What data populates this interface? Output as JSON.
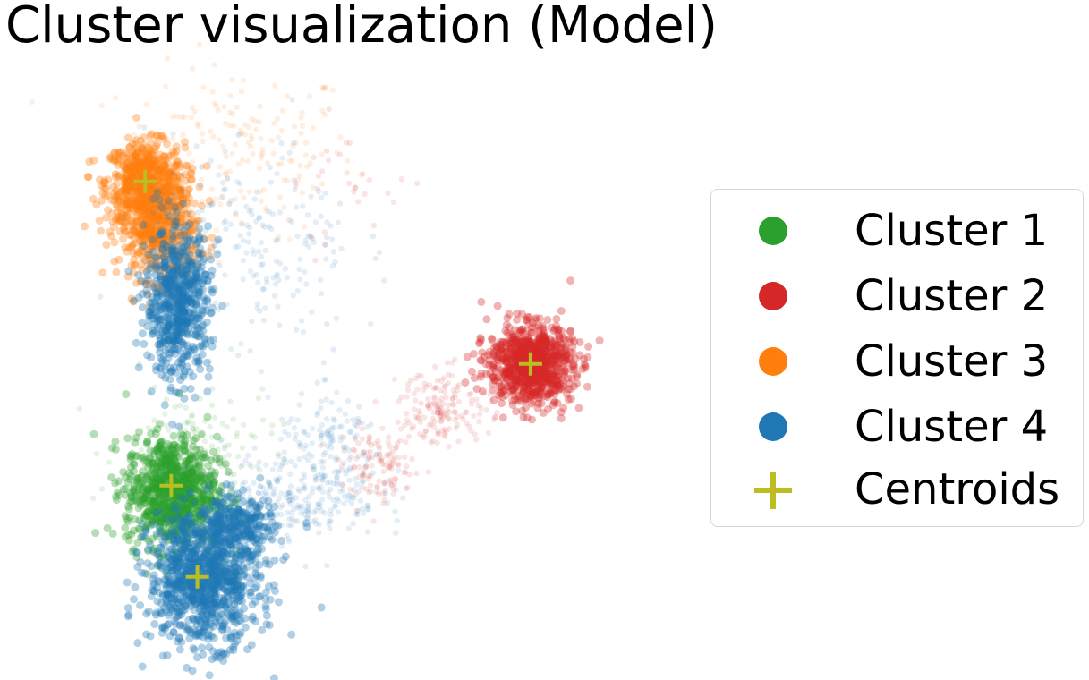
{
  "chart_data": {
    "type": "scatter",
    "title": "Cluster visualization (Model)",
    "xlabel": "",
    "ylabel": "",
    "axes_visible": false,
    "grid": false,
    "legend_placement": "right",
    "xlim": [
      0,
      100
    ],
    "ylim": [
      0,
      100
    ],
    "series": [
      {
        "name": "Cluster 1",
        "color": "#2ca02c",
        "blobs": [
          {
            "cx": 18,
            "cy": 28,
            "sx": 3.5,
            "sy": 4.5,
            "n": 900
          }
        ],
        "spread": [
          {
            "cx": 22,
            "cy": 34,
            "sx": 6,
            "sy": 6,
            "n": 140
          }
        ]
      },
      {
        "name": "Cluster 2",
        "color": "#d62728",
        "blobs": [
          {
            "cx": 73,
            "cy": 49,
            "sx": 3.2,
            "sy": 3.2,
            "n": 900
          }
        ],
        "spread": [
          {
            "cx": 60,
            "cy": 42,
            "sx": 3.5,
            "sy": 3,
            "n": 160
          },
          {
            "cx": 50,
            "cy": 32,
            "sx": 3,
            "sy": 3,
            "n": 120
          },
          {
            "cx": 45,
            "cy": 78,
            "sx": 6,
            "sy": 5,
            "n": 30
          }
        ]
      },
      {
        "name": "Cluster 3",
        "color": "#ff7f0e",
        "blobs": [
          {
            "cx": 14,
            "cy": 79,
            "sx": 3,
            "sy": 3.2,
            "n": 600
          },
          {
            "cx": 16,
            "cy": 71,
            "sx": 3,
            "sy": 4,
            "n": 500
          }
        ],
        "spread": [
          {
            "cx": 28,
            "cy": 84,
            "sx": 9,
            "sy": 7,
            "n": 180
          }
        ]
      },
      {
        "name": "Cluster 4",
        "color": "#1f77b4",
        "blobs": [
          {
            "cx": 23,
            "cy": 14,
            "sx": 4.2,
            "sy": 5.5,
            "n": 1100
          },
          {
            "cx": 19,
            "cy": 59,
            "sx": 2.5,
            "sy": 6,
            "n": 700
          },
          {
            "cx": 28,
            "cy": 22,
            "sx": 3,
            "sy": 2.5,
            "n": 250
          }
        ],
        "spread": [
          {
            "cx": 38,
            "cy": 28,
            "sx": 6,
            "sy": 4,
            "n": 260
          },
          {
            "cx": 30,
            "cy": 68,
            "sx": 8,
            "sy": 9,
            "n": 220
          },
          {
            "cx": 43,
            "cy": 36,
            "sx": 4,
            "sy": 4,
            "n": 100
          }
        ]
      }
    ],
    "centroids": {
      "name": "Centroids",
      "color": "#bcbd22",
      "points": [
        {
          "x": 18,
          "y": 29
        },
        {
          "x": 73,
          "y": 49
        },
        {
          "x": 14,
          "y": 79
        },
        {
          "x": 22,
          "y": 14
        }
      ]
    }
  }
}
